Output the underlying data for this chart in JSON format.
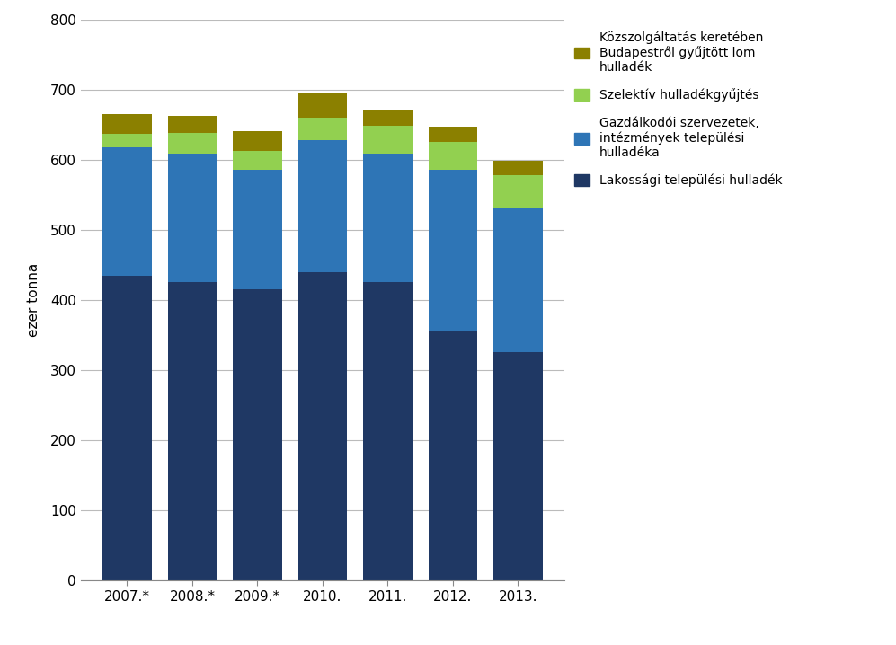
{
  "years": [
    "2007.*",
    "2008.*",
    "2009.*",
    "2010.",
    "2011.",
    "2012.",
    "2013."
  ],
  "lakossagi": [
    435,
    425,
    415,
    440,
    425,
    355,
    325
  ],
  "gazdalkodoi": [
    182,
    183,
    170,
    188,
    183,
    230,
    205
  ],
  "szelektiv": [
    20,
    30,
    28,
    32,
    40,
    40,
    48
  ],
  "lom": [
    28,
    25,
    27,
    35,
    22,
    22,
    20
  ],
  "colors": {
    "lakossagi": "#1F3864",
    "gazdalkodoi": "#2E75B6",
    "szelektiv": "#92D050",
    "lom": "#8B8000"
  },
  "legend_labels": [
    "Közszolgáltatás keretében\nBudapestről gyűjtött lom\nhulladék",
    "Szelektív hulladékgyűjtés",
    "Gazdálkodói szervezetek,\nintézmények települési\nhulladéka",
    "Lakossági települési hulladék"
  ],
  "ylabel": "ezer tonna",
  "ylim": [
    0,
    800
  ],
  "yticks": [
    0,
    100,
    200,
    300,
    400,
    500,
    600,
    700,
    800
  ],
  "bar_width": 0.75,
  "figure_bg": "#FFFFFF",
  "axes_bg": "#FFFFFF",
  "grid_color": "#BBBBBB",
  "spine_color": "#888888"
}
